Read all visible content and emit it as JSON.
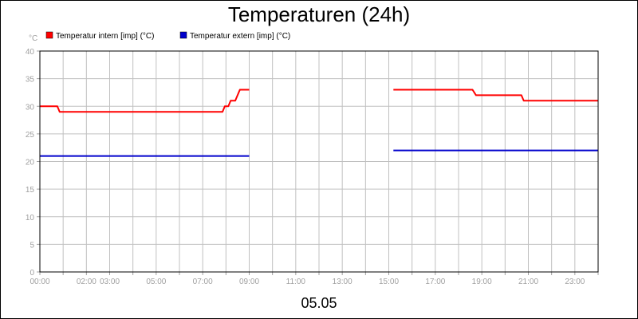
{
  "chart_data": {
    "type": "line",
    "title": "Temperaturen (24h)",
    "footer": "05.05",
    "ylabel": "°C",
    "ylim": [
      0,
      40
    ],
    "yticks": [
      "0",
      "5",
      "10",
      "15",
      "20",
      "25",
      "30",
      "35",
      "40"
    ],
    "xlim_hours": [
      0,
      24
    ],
    "xticks": [
      {
        "label": "00:00",
        "hour": 0
      },
      {
        "label": "02:00",
        "hour": 2
      },
      {
        "label": "03:00",
        "hour": 3
      },
      {
        "label": "05:00",
        "hour": 5
      },
      {
        "label": "07:00",
        "hour": 7
      },
      {
        "label": "09:00",
        "hour": 9
      },
      {
        "label": "11:00",
        "hour": 11
      },
      {
        "label": "13:00",
        "hour": 13
      },
      {
        "label": "15:00",
        "hour": 15
      },
      {
        "label": "17:00",
        "hour": 17
      },
      {
        "label": "19:00",
        "hour": 19
      },
      {
        "label": "21:00",
        "hour": 21
      },
      {
        "label": "23:00",
        "hour": 23
      }
    ],
    "grid": true,
    "legend_position": "top-left",
    "series": [
      {
        "name": "Temperatur intern [imp] (°C)",
        "color": "#ff0000",
        "segments": [
          [
            [
              0,
              30
            ],
            [
              0.75,
              30
            ],
            [
              0.85,
              29
            ],
            [
              7.85,
              29
            ],
            [
              7.95,
              30
            ],
            [
              8.1,
              30
            ],
            [
              8.2,
              31
            ],
            [
              8.4,
              31
            ],
            [
              8.6,
              33
            ],
            [
              9.0,
              33
            ]
          ],
          [
            [
              15.2,
              33
            ],
            [
              18.6,
              33
            ],
            [
              18.75,
              32
            ],
            [
              20.7,
              32
            ],
            [
              20.8,
              31
            ],
            [
              24,
              31
            ]
          ]
        ]
      },
      {
        "name": "Temperatur extern [imp] (°C)",
        "color": "#0000cc",
        "segments": [
          [
            [
              0,
              21
            ],
            [
              9.0,
              21
            ]
          ],
          [
            [
              15.2,
              22
            ],
            [
              24,
              22
            ]
          ]
        ]
      }
    ]
  }
}
